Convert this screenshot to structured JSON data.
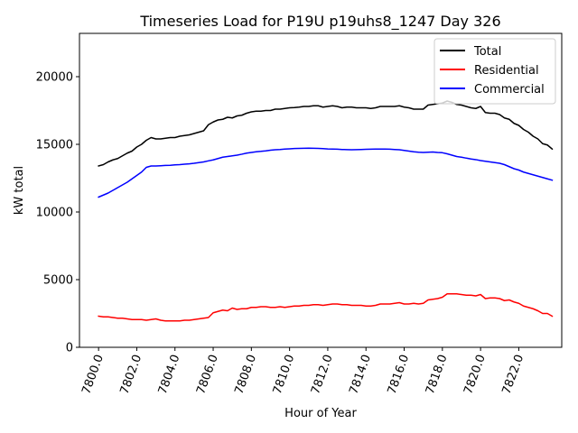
{
  "chart_data": {
    "type": "line",
    "title": "Timeseries Load for P19U p19uhs8_1247  Day 326",
    "xlabel": "Hour of Year",
    "ylabel": "kW total",
    "xlim": [
      7799.0,
      7824.25
    ],
    "ylim": [
      0,
      23200
    ],
    "xticks": [
      7800,
      7802,
      7804,
      7806,
      7808,
      7810,
      7812,
      7814,
      7816,
      7818,
      7820,
      7822
    ],
    "xtick_labels": [
      "7800.0",
      "7802.0",
      "7804.0",
      "7806.0",
      "7808.0",
      "7810.0",
      "7812.0",
      "7814.0",
      "7816.0",
      "7818.0",
      "7820.0",
      "7822.0"
    ],
    "yticks": [
      0,
      5000,
      10000,
      15000,
      20000
    ],
    "ytick_labels": [
      "0",
      "5000",
      "10000",
      "15000",
      "20000"
    ],
    "legend_position": "top-right",
    "x": [
      7800.0,
      7800.25,
      7800.5,
      7800.75,
      7801.0,
      7801.25,
      7801.5,
      7801.75,
      7802.0,
      7802.25,
      7802.5,
      7802.75,
      7803.0,
      7803.25,
      7803.5,
      7803.75,
      7804.0,
      7804.25,
      7804.5,
      7804.75,
      7805.0,
      7805.25,
      7805.5,
      7805.75,
      7806.0,
      7806.25,
      7806.5,
      7806.75,
      7807.0,
      7807.25,
      7807.5,
      7807.75,
      7808.0,
      7808.25,
      7808.5,
      7808.75,
      7809.0,
      7809.25,
      7809.5,
      7809.75,
      7810.0,
      7810.25,
      7810.5,
      7810.75,
      7811.0,
      7811.25,
      7811.5,
      7811.75,
      7812.0,
      7812.25,
      7812.5,
      7812.75,
      7813.0,
      7813.25,
      7813.5,
      7813.75,
      7814.0,
      7814.25,
      7814.5,
      7814.75,
      7815.0,
      7815.25,
      7815.5,
      7815.75,
      7816.0,
      7816.25,
      7816.5,
      7816.75,
      7817.0,
      7817.25,
      7817.5,
      7817.75,
      7818.0,
      7818.25,
      7818.5,
      7818.75,
      7819.0,
      7819.25,
      7819.5,
      7819.75,
      7820.0,
      7820.25,
      7820.5,
      7820.75,
      7821.0,
      7821.25,
      7821.5,
      7821.75,
      7822.0,
      7822.25,
      7822.5,
      7822.75,
      7823.0,
      7823.25,
      7823.5,
      7823.75
    ],
    "series": [
      {
        "name": "Total",
        "color": "#000000",
        "values": [
          13400,
          13500,
          13700,
          13850,
          13950,
          14150,
          14350,
          14500,
          14800,
          15000,
          15300,
          15500,
          15400,
          15400,
          15450,
          15500,
          15500,
          15600,
          15650,
          15700,
          15800,
          15900,
          16000,
          16450,
          16650,
          16800,
          16850,
          17000,
          16950,
          17100,
          17150,
          17300,
          17400,
          17450,
          17450,
          17500,
          17500,
          17600,
          17600,
          17650,
          17700,
          17720,
          17750,
          17800,
          17800,
          17850,
          17850,
          17750,
          17800,
          17850,
          17800,
          17700,
          17750,
          17750,
          17700,
          17700,
          17700,
          17650,
          17700,
          17800,
          17800,
          17800,
          17800,
          17850,
          17750,
          17700,
          17600,
          17600,
          17600,
          17900,
          17950,
          18000,
          18050,
          18200,
          18100,
          17950,
          17900,
          17800,
          17700,
          17650,
          17800,
          17350,
          17300,
          17300,
          17200,
          16950,
          16850,
          16550,
          16400,
          16100,
          15900,
          15600,
          15400,
          15050,
          14950,
          14650
        ]
      },
      {
        "name": "Residential",
        "color": "#ff0000",
        "values": [
          2300,
          2250,
          2250,
          2200,
          2150,
          2150,
          2100,
          2050,
          2050,
          2050,
          2000,
          2050,
          2100,
          2000,
          1950,
          1950,
          1950,
          1950,
          2000,
          2000,
          2050,
          2100,
          2150,
          2200,
          2550,
          2650,
          2750,
          2700,
          2900,
          2800,
          2850,
          2850,
          2950,
          2950,
          3000,
          3000,
          2950,
          2950,
          3000,
          2950,
          3000,
          3050,
          3050,
          3100,
          3100,
          3150,
          3150,
          3100,
          3150,
          3200,
          3200,
          3150,
          3150,
          3100,
          3100,
          3100,
          3050,
          3050,
          3100,
          3200,
          3200,
          3200,
          3250,
          3300,
          3200,
          3200,
          3250,
          3200,
          3250,
          3500,
          3550,
          3600,
          3700,
          3950,
          3950,
          3950,
          3900,
          3850,
          3850,
          3800,
          3900,
          3600,
          3650,
          3650,
          3600,
          3450,
          3500,
          3350,
          3250,
          3050,
          2950,
          2850,
          2700,
          2500,
          2500,
          2300
        ]
      },
      {
        "name": "Commercial",
        "color": "#0000ff",
        "values": [
          11100,
          11250,
          11400,
          11600,
          11800,
          12000,
          12200,
          12450,
          12700,
          12950,
          13300,
          13400,
          13400,
          13420,
          13440,
          13450,
          13480,
          13500,
          13530,
          13560,
          13600,
          13650,
          13700,
          13780,
          13850,
          13950,
          14050,
          14100,
          14150,
          14200,
          14270,
          14350,
          14400,
          14450,
          14480,
          14520,
          14570,
          14600,
          14620,
          14650,
          14670,
          14690,
          14700,
          14710,
          14720,
          14710,
          14700,
          14680,
          14660,
          14650,
          14640,
          14620,
          14610,
          14600,
          14610,
          14620,
          14630,
          14640,
          14650,
          14650,
          14650,
          14640,
          14620,
          14600,
          14550,
          14500,
          14450,
          14420,
          14400,
          14420,
          14430,
          14400,
          14380,
          14300,
          14200,
          14100,
          14050,
          13980,
          13920,
          13870,
          13800,
          13750,
          13700,
          13650,
          13600,
          13500,
          13350,
          13200,
          13100,
          12950,
          12850,
          12750,
          12650,
          12550,
          12450,
          12350
        ]
      }
    ]
  }
}
